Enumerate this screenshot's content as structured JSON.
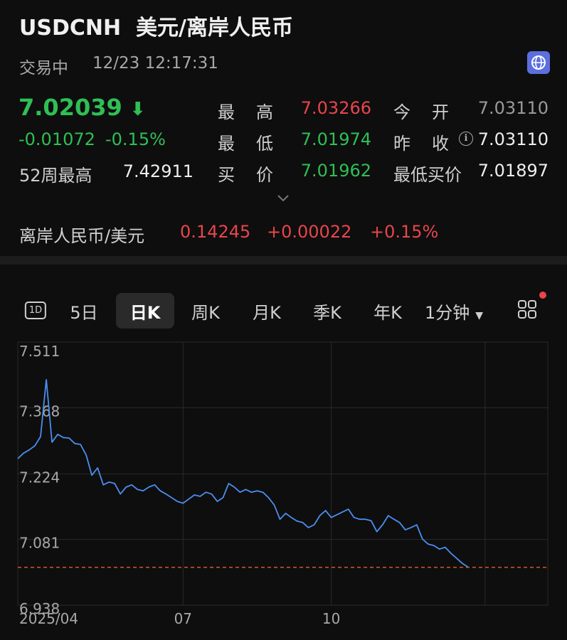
{
  "header": {
    "symbol": "USDCNH",
    "name": "美元/离岸人民币",
    "status": "交易中",
    "time": "12/23 12:17:31"
  },
  "quote": {
    "price": 7.02039,
    "price_color": "#2fbf55",
    "change": "-0.01072",
    "change_pct": "-0.15%",
    "change_color": "#2fbf55",
    "week52_label": "52周最高",
    "week52_value": "7.42911",
    "stats": [
      {
        "label": "最高",
        "value": "7.03266",
        "color": "#e8454b"
      },
      {
        "label": "今开",
        "value": "7.03110",
        "color": "#9a9a9a"
      },
      {
        "label": "最低",
        "value": "7.01974",
        "color": "#2fbf55"
      },
      {
        "label": "昨收",
        "value": "7.03110",
        "color": "#eeeeee"
      },
      {
        "label": "买价",
        "value": "7.01962",
        "color": "#2fbf55"
      },
      {
        "label": "最低买价",
        "value": "7.01897",
        "color": "#eeeeee"
      }
    ]
  },
  "inverse": {
    "label": "离岸人民币/美元",
    "value": "0.14245",
    "change": "+0.00022",
    "change_pct": "+0.15%",
    "color": "#e8454b"
  },
  "tabs": {
    "items": [
      "1D",
      "5日",
      "日K",
      "周K",
      "月K",
      "季K",
      "年K",
      "1分钟"
    ],
    "selected": 2
  },
  "chart_data": {
    "type": "line",
    "color": "#4a8ef0",
    "values": [
      7.257,
      7.269,
      7.276,
      7.285,
      7.305,
      7.429,
      7.293,
      7.31,
      7.303,
      7.302,
      7.29,
      7.288,
      7.265,
      7.221,
      7.237,
      7.2,
      7.206,
      7.203,
      7.18,
      7.195,
      7.2,
      7.19,
      7.187,
      7.195,
      7.2,
      7.187,
      7.18,
      7.172,
      7.164,
      7.16,
      7.169,
      7.178,
      7.175,
      7.184,
      7.18,
      7.164,
      7.172,
      7.203,
      7.195,
      7.184,
      7.19,
      7.184,
      7.187,
      7.184,
      7.172,
      7.156,
      7.125,
      7.138,
      7.129,
      7.121,
      7.118,
      7.107,
      7.113,
      7.133,
      7.144,
      7.129,
      7.135,
      7.141,
      7.147,
      7.129,
      7.125,
      7.125,
      7.122,
      7.098,
      7.113,
      7.133,
      7.125,
      7.118,
      7.102,
      7.107,
      7.113,
      7.082,
      7.071,
      7.068,
      7.06,
      7.064,
      7.051,
      7.04,
      7.029,
      7.021
    ],
    "xlim": [
      0,
      93
    ],
    "xticks": [
      {
        "value": 0,
        "label": "2025/04"
      },
      {
        "value": 29,
        "label": "07"
      },
      {
        "value": 55,
        "label": "10"
      },
      {
        "value": 82,
        "label": null
      }
    ],
    "ylim": [
      6.938,
      7.511
    ],
    "yticks": [
      6.938,
      7.081,
      7.224,
      7.368,
      7.511
    ],
    "grid": true,
    "reference_color": "#e0622a"
  }
}
